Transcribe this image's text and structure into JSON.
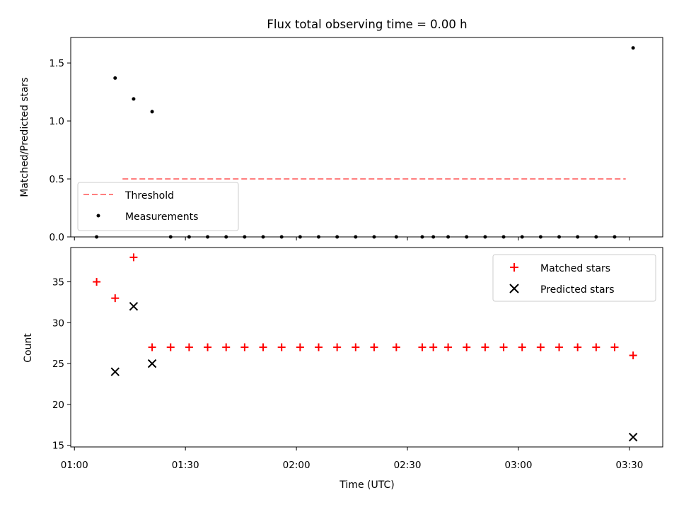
{
  "chart_data": [
    {
      "type": "scatter",
      "title": "Flux total observing time = 0.00 h",
      "xlabel": "",
      "ylabel": "Matched/Predicted stars",
      "ylim": [
        0,
        1.72
      ],
      "xlim": [
        "00:59",
        "03:39"
      ],
      "yticks": [
        "0.0",
        "0.5",
        "1.0",
        "1.5"
      ],
      "legend_position": "lower-left",
      "threshold": {
        "name": "Threshold",
        "value": 0.5,
        "color": "#ff7f7f",
        "x_start": "01:13",
        "x_end": "03:29",
        "style": "dashed"
      },
      "series": [
        {
          "name": "Measurements",
          "color": "#000000",
          "marker": "dot",
          "x": [
            "01:06",
            "01:11",
            "01:16",
            "01:21",
            "01:26",
            "01:31",
            "01:36",
            "01:41",
            "01:46",
            "01:51",
            "01:56",
            "02:01",
            "02:06",
            "02:11",
            "02:16",
            "02:21",
            "02:27",
            "02:34",
            "02:37",
            "02:41",
            "02:46",
            "02:51",
            "02:56",
            "03:01",
            "03:06",
            "03:11",
            "03:16",
            "03:21",
            "03:26",
            "03:31"
          ],
          "y": [
            0.0,
            1.37,
            1.19,
            1.08,
            0.0,
            0.0,
            0.0,
            0.0,
            0.0,
            0.0,
            0.0,
            0.0,
            0.0,
            0.0,
            0.0,
            0.0,
            0.0,
            0.0,
            0.0,
            0.0,
            0.0,
            0.0,
            0.0,
            0.0,
            0.0,
            0.0,
            0.0,
            0.0,
            0.0,
            1.63
          ]
        }
      ]
    },
    {
      "type": "scatter",
      "title": "",
      "xlabel": "Time (UTC)",
      "ylabel": "Count",
      "ylim": [
        14.8,
        39.2
      ],
      "xlim": [
        "00:59",
        "03:39"
      ],
      "yticks": [
        "15",
        "20",
        "25",
        "30",
        "35"
      ],
      "xticks": [
        "01:00",
        "01:30",
        "02:00",
        "02:30",
        "03:00",
        "03:30"
      ],
      "legend_position": "upper-right",
      "series": [
        {
          "name": "Matched stars",
          "color": "#ff0000",
          "marker": "plus",
          "x": [
            "01:06",
            "01:11",
            "01:16",
            "01:21",
            "01:26",
            "01:31",
            "01:36",
            "01:41",
            "01:46",
            "01:51",
            "01:56",
            "02:01",
            "02:06",
            "02:11",
            "02:16",
            "02:21",
            "02:27",
            "02:34",
            "02:37",
            "02:41",
            "02:46",
            "02:51",
            "02:56",
            "03:01",
            "03:06",
            "03:11",
            "03:16",
            "03:21",
            "03:26",
            "03:31"
          ],
          "y": [
            35,
            33,
            38,
            27,
            27,
            27,
            27,
            27,
            27,
            27,
            27,
            27,
            27,
            27,
            27,
            27,
            27,
            27,
            27,
            27,
            27,
            27,
            27,
            27,
            27,
            27,
            27,
            27,
            27,
            26
          ]
        },
        {
          "name": "Predicted stars",
          "color": "#000000",
          "marker": "x",
          "x": [
            "01:11",
            "01:16",
            "01:21",
            "03:31"
          ],
          "y": [
            24,
            32,
            25,
            16
          ]
        }
      ]
    }
  ]
}
